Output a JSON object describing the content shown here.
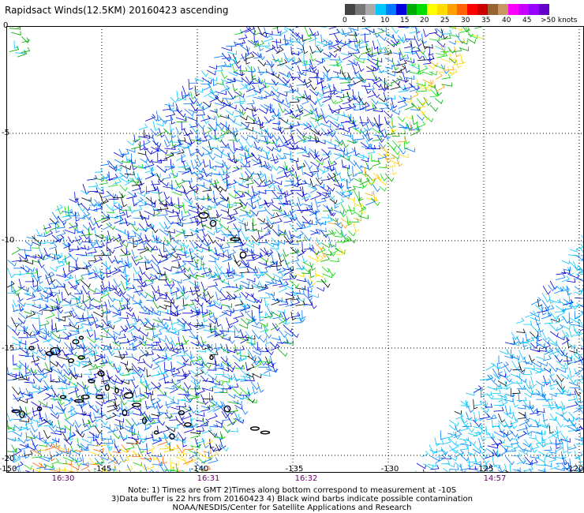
{
  "title": "Rapidsact Winds(12.5KM) 20160423 ascending",
  "legend": {
    "labels": [
      "0",
      "5",
      "10",
      "15",
      "20",
      "25",
      "30",
      "35",
      "40",
      "45",
      ">50 knots"
    ],
    "colors": [
      "#444444",
      "#777777",
      "#aaaaaa",
      "#00c8ff",
      "#0078ff",
      "#0000dc",
      "#00aa00",
      "#00dc00",
      "#ffff00",
      "#ffdc00",
      "#ffa000",
      "#ff6400",
      "#ff0000",
      "#c80000",
      "#966432",
      "#c89664",
      "#ff00ff",
      "#c800ff",
      "#9600ff",
      "#6400c8"
    ]
  },
  "axes": {
    "lat_labels": [
      "0",
      "-5",
      "-10",
      "-15",
      "-20"
    ],
    "lon_labels": [
      "-150",
      "-145",
      "-140",
      "-135",
      "-130",
      "-125",
      "-120"
    ]
  },
  "times": [
    "16:30",
    "16:31",
    "16:32",
    "14:57"
  ],
  "footer": {
    "line1": "Note: 1) Times are GMT 2)Times along bottom correspond to measurement at -10S",
    "line2": "3)Data buffer is 22 hrs from 20160423 4) Black wind barbs indicate possible contamination",
    "line3": "NOAA/NESDIS/Center for Satellite Applications and Research"
  }
}
